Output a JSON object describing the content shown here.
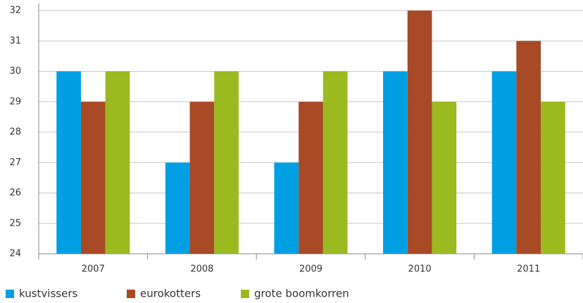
{
  "chart_data": {
    "type": "bar",
    "categories": [
      "2007",
      "2008",
      "2009",
      "2010",
      "2011"
    ],
    "series": [
      {
        "name": "kustvissers",
        "color": "#009fe3",
        "values": [
          30,
          27,
          27,
          30,
          30
        ]
      },
      {
        "name": "eurokotters",
        "color": "#a84a26",
        "values": [
          29,
          29,
          29,
          32,
          31
        ]
      },
      {
        "name": "grote boomkorren",
        "color": "#9bba1f",
        "values": [
          30,
          30,
          30,
          29,
          29
        ]
      }
    ],
    "ylim": [
      24,
      32
    ],
    "yticks": [
      24,
      25,
      26,
      27,
      28,
      29,
      30,
      31,
      32
    ],
    "grid": true,
    "legend": "bottom"
  }
}
